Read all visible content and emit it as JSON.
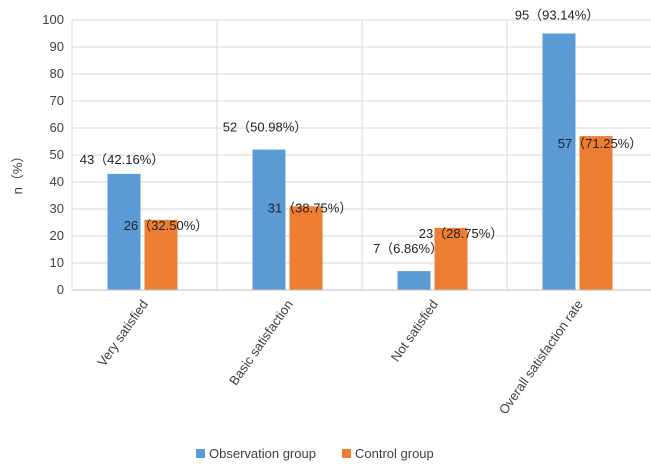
{
  "chart_data": {
    "type": "bar",
    "title": "",
    "xlabel": "",
    "ylabel": "n（%）",
    "ylim": [
      0,
      100
    ],
    "yticks": [
      0,
      10,
      20,
      30,
      40,
      50,
      60,
      70,
      80,
      90,
      100
    ],
    "grid": "horizontal",
    "legend_position": "bottom",
    "categories": [
      "Very satisfied",
      "Basic satisfaction",
      "Not satisfied",
      "Overall satisfaction rate"
    ],
    "series": [
      {
        "name": "Observation group",
        "color": "#5B9BD5",
        "values": [
          43,
          52,
          7,
          95
        ],
        "data_labels": [
          "43（42.16%）",
          "52（50.98%）",
          "7（6.86%）",
          "95（93.14%）"
        ]
      },
      {
        "name": "Control group",
        "color": "#ED7D31",
        "values": [
          26,
          31,
          23,
          57
        ],
        "data_labels": [
          "26（32.50%）",
          "31（38.75%）",
          "23（28.75%）",
          "57（71.25%）"
        ]
      }
    ]
  }
}
